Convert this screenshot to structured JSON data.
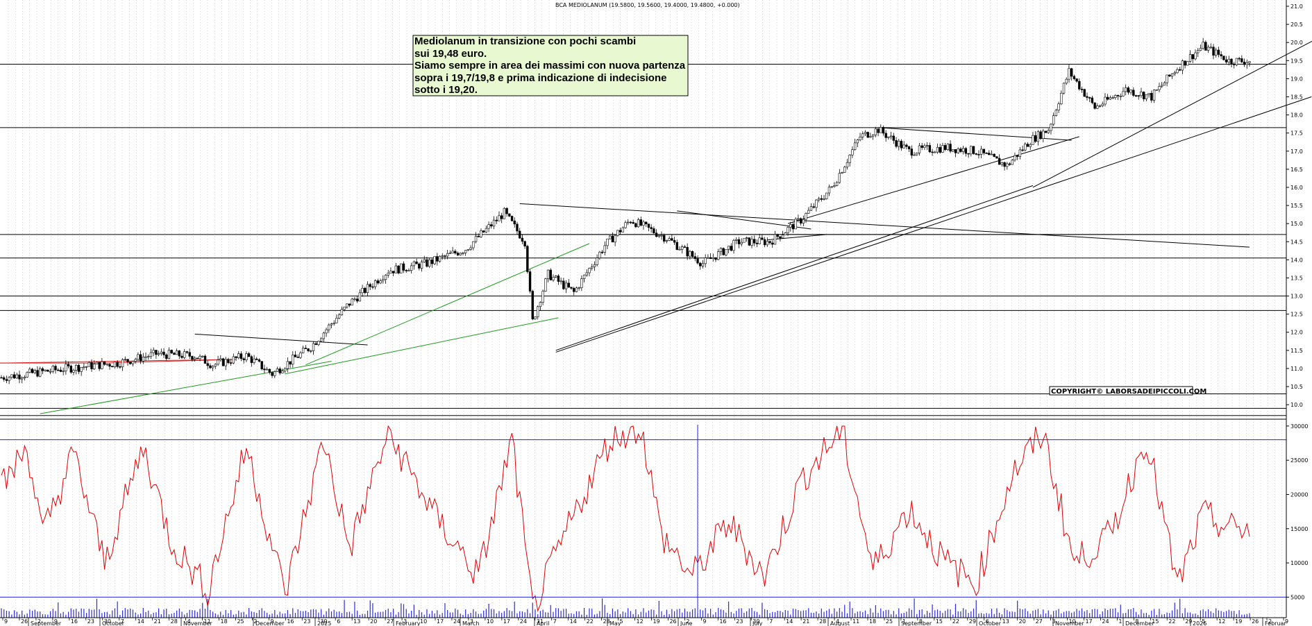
{
  "chart_data": {
    "type": "candlestick",
    "title": "BCA MEDIOLANUM (19.5800, 19.5600, 19.4000, 19.4800, +0.000)",
    "copyright": "COPYRIGHT© LABORSADEIPICCOLI.COM",
    "annotation": [
      "Mediolanum in transizione con pochi scambi",
      "sui 19,48 euro.",
      "Siamo sempre in area dei massimi  con nuova partenza",
      "sopra i 19,7/19,8 e prima indicazione di indecisione",
      "sotto i 19,20."
    ],
    "price_axis": {
      "ylim": [
        9.6,
        21.0
      ],
      "ticks": [
        "10.0",
        "10.5",
        "11.0",
        "11.5",
        "12.0",
        "12.5",
        "13.0",
        "13.5",
        "14.0",
        "14.5",
        "15.0",
        "15.5",
        "16.0",
        "16.5",
        "17.0",
        "17.5",
        "18.0",
        "18.5",
        "19.0",
        "19.5",
        "20.0",
        "20.5",
        "21.0"
      ]
    },
    "volume_axis": {
      "ylim": [
        2000,
        31000
      ],
      "ticks": [
        "5000",
        "10000",
        "15000",
        "20000",
        "25000",
        "30000"
      ],
      "reference_levels": [
        28000,
        5000
      ]
    },
    "price_series_keypoints": [
      [
        0,
        10.75
      ],
      [
        25,
        11.0
      ],
      [
        45,
        11.15
      ],
      [
        60,
        11.4
      ],
      [
        75,
        11.35
      ],
      [
        82,
        11.1
      ],
      [
        95,
        11.35
      ],
      [
        105,
        10.85
      ],
      [
        120,
        11.6
      ],
      [
        135,
        12.8
      ],
      [
        150,
        13.7
      ],
      [
        165,
        13.9
      ],
      [
        180,
        14.3
      ],
      [
        195,
        15.3
      ],
      [
        203,
        14.5
      ],
      [
        206,
        12.3
      ],
      [
        212,
        13.6
      ],
      [
        222,
        13.1
      ],
      [
        234,
        14.4
      ],
      [
        244,
        15.1
      ],
      [
        258,
        14.6
      ],
      [
        272,
        13.9
      ],
      [
        286,
        14.5
      ],
      [
        298,
        14.5
      ],
      [
        310,
        15.1
      ],
      [
        322,
        16.0
      ],
      [
        333,
        17.4
      ],
      [
        340,
        17.6
      ],
      [
        352,
        17.0
      ],
      [
        366,
        17.1
      ],
      [
        378,
        17.0
      ],
      [
        390,
        16.6
      ],
      [
        399,
        17.3
      ],
      [
        406,
        17.6
      ],
      [
        414,
        19.2
      ],
      [
        424,
        18.2
      ],
      [
        436,
        18.7
      ],
      [
        446,
        18.5
      ],
      [
        456,
        19.3
      ],
      [
        466,
        19.9
      ],
      [
        476,
        19.5
      ],
      [
        484,
        19.48
      ]
    ],
    "oscillator_keypoints": [
      [
        0,
        21000
      ],
      [
        10,
        27000
      ],
      [
        16,
        14000
      ],
      [
        28,
        26000
      ],
      [
        40,
        10000
      ],
      [
        55,
        27000
      ],
      [
        66,
        13000
      ],
      [
        80,
        6000
      ],
      [
        95,
        27000
      ],
      [
        110,
        5500
      ],
      [
        125,
        28000
      ],
      [
        135,
        12000
      ],
      [
        150,
        29000
      ],
      [
        168,
        17000
      ],
      [
        185,
        8000
      ],
      [
        198,
        28000
      ],
      [
        206,
        3000
      ],
      [
        222,
        17000
      ],
      [
        236,
        28000
      ],
      [
        248,
        30000
      ],
      [
        256,
        14000
      ],
      [
        268,
        8000
      ],
      [
        282,
        16000
      ],
      [
        296,
        8000
      ],
      [
        310,
        22000
      ],
      [
        326,
        29500
      ],
      [
        338,
        9000
      ],
      [
        352,
        18000
      ],
      [
        366,
        10000
      ],
      [
        378,
        7000
      ],
      [
        392,
        23000
      ],
      [
        404,
        29000
      ],
      [
        416,
        10000
      ],
      [
        430,
        14000
      ],
      [
        444,
        28500
      ],
      [
        456,
        6500
      ],
      [
        466,
        17000
      ],
      [
        476,
        15000
      ]
    ],
    "x_axis": {
      "day_ticks": [
        "9",
        "26",
        "2",
        "9",
        "16",
        "23",
        "30",
        "7",
        "14",
        "21",
        "28",
        "4",
        "11",
        "18",
        "25",
        "2",
        "9",
        "16",
        "23",
        "30",
        "6",
        "13",
        "20",
        "27",
        "3",
        "10",
        "17",
        "24",
        "3",
        "10",
        "17",
        "24",
        "31",
        "7",
        "14",
        "22",
        "28",
        "5",
        "12",
        "19",
        "26",
        "2",
        "9",
        "16",
        "23",
        "30",
        "7",
        "14",
        "21",
        "28",
        "4",
        "11",
        "18",
        "25",
        "1",
        "8",
        "15",
        "22",
        "29",
        "6",
        "13",
        "20",
        "27",
        "3",
        "10",
        "17",
        "24",
        "1",
        "8",
        "15",
        "22",
        "29",
        "5",
        "12",
        "19",
        "26",
        "2",
        "9"
      ],
      "month_labels": [
        "September",
        "October",
        "November",
        "December",
        "2025",
        "February",
        "March",
        "April",
        "May",
        "June",
        "July",
        "August",
        "September",
        "October",
        "November",
        "December",
        "2026",
        "Februar"
      ]
    },
    "horizontal_levels": [
      19.4,
      17.65,
      14.7,
      14.05,
      13.0,
      12.6,
      10.3,
      9.9,
      9.7
    ],
    "grid": "vertical dotted"
  }
}
